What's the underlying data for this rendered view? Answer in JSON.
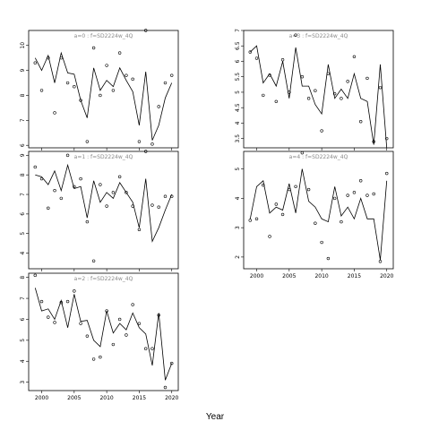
{
  "xlabel": "Year",
  "chart_data": [
    {
      "type": "line",
      "panel": "a=0",
      "title": "a=0  :  f=SD2224w_4Q",
      "xlim": [
        1998,
        2021
      ],
      "ylim": [
        5.9,
        10.6
      ],
      "yticks": [
        6,
        7,
        8,
        9,
        10
      ],
      "xticks": [
        2000,
        2005,
        2010,
        2015,
        2020
      ],
      "show_xticklabels": false,
      "series": [
        {
          "kind": "line",
          "x": [
            1999,
            2000,
            2001,
            2002,
            2003,
            2004,
            2005,
            2006,
            2007,
            2008,
            2009,
            2010,
            2011,
            2012,
            2013,
            2014,
            2015,
            2016,
            2017,
            2018,
            2019,
            2020
          ],
          "y": [
            9.5,
            9.0,
            9.6,
            8.5,
            9.7,
            8.9,
            8.85,
            7.8,
            7.1,
            9.1,
            8.2,
            8.6,
            8.35,
            9.1,
            8.6,
            8.15,
            6.8,
            8.95,
            6.2,
            6.8,
            7.9,
            8.5
          ]
        },
        {
          "kind": "points",
          "x": [
            1999,
            2000,
            2001,
            2002,
            2003,
            2004,
            2005,
            2006,
            2007,
            2008,
            2009,
            2010,
            2011,
            2012,
            2013,
            2014,
            2015,
            2016,
            2017,
            2018,
            2019,
            2020
          ],
          "y": [
            9.3,
            8.2,
            9.5,
            7.3,
            9.5,
            8.5,
            8.35,
            7.8,
            6.15,
            9.9,
            8.0,
            9.2,
            8.2,
            9.7,
            8.8,
            8.65,
            6.15,
            10.6,
            6.05,
            7.55,
            8.5,
            8.8
          ]
        }
      ]
    },
    {
      "type": "line",
      "panel": "a=1",
      "title": "a=1  :  f=SD2224w_4Q",
      "xlim": [
        1998,
        2021
      ],
      "ylim": [
        3.2,
        9.2
      ],
      "yticks": [
        4,
        5,
        6,
        7,
        8,
        9
      ],
      "xticks": [
        2000,
        2005,
        2010,
        2015,
        2020
      ],
      "show_xticklabels": false,
      "series": [
        {
          "kind": "line",
          "x": [
            1999,
            2000,
            2001,
            2002,
            2003,
            2004,
            2005,
            2006,
            2007,
            2008,
            2009,
            2010,
            2011,
            2012,
            2013,
            2014,
            2015,
            2016,
            2017,
            2018,
            2019,
            2020
          ],
          "y": [
            8.0,
            7.9,
            7.5,
            8.2,
            7.2,
            8.5,
            7.3,
            7.4,
            5.8,
            7.7,
            6.6,
            7.1,
            6.8,
            7.6,
            7.1,
            6.6,
            5.3,
            7.8,
            4.6,
            5.3,
            6.2,
            7.0
          ]
        },
        {
          "kind": "points",
          "x": [
            1999,
            2000,
            2001,
            2002,
            2003,
            2004,
            2005,
            2006,
            2007,
            2008,
            2009,
            2010,
            2011,
            2012,
            2013,
            2014,
            2015,
            2016,
            2017,
            2018,
            2019,
            2020
          ],
          "y": [
            8.4,
            7.8,
            6.3,
            7.2,
            6.8,
            9.0,
            7.4,
            7.8,
            5.6,
            3.6,
            7.5,
            6.4,
            7.1,
            7.9,
            7.1,
            6.4,
            5.2,
            9.2,
            6.45,
            6.35,
            6.9,
            6.9
          ]
        }
      ]
    },
    {
      "type": "line",
      "panel": "a=2",
      "title": "a=2  :  f=SD2224w_4Q",
      "xlim": [
        1998,
        2021
      ],
      "ylim": [
        2.6,
        8.2
      ],
      "yticks": [
        3,
        4,
        5,
        6,
        7,
        8
      ],
      "xticks": [
        2000,
        2005,
        2010,
        2015,
        2020
      ],
      "show_xticklabels": true,
      "series": [
        {
          "kind": "line",
          "x": [
            1999,
            2000,
            2001,
            2002,
            2003,
            2004,
            2005,
            2006,
            2007,
            2008,
            2009,
            2010,
            2011,
            2012,
            2013,
            2014,
            2015,
            2016,
            2017,
            2018,
            2019,
            2020
          ],
          "y": [
            7.5,
            6.4,
            6.5,
            6.0,
            6.9,
            5.6,
            7.2,
            5.9,
            5.95,
            5.0,
            4.7,
            6.4,
            5.35,
            5.8,
            5.5,
            6.3,
            5.6,
            5.3,
            3.8,
            6.3,
            3.1,
            3.9
          ]
        },
        {
          "kind": "points",
          "x": [
            1999,
            2000,
            2001,
            2002,
            2003,
            2004,
            2005,
            2006,
            2007,
            2008,
            2009,
            2010,
            2011,
            2012,
            2013,
            2014,
            2015,
            2016,
            2017,
            2018,
            2019,
            2020
          ],
          "y": [
            8.1,
            6.85,
            6.1,
            5.85,
            6.8,
            6.85,
            7.35,
            5.8,
            5.2,
            4.1,
            4.2,
            6.4,
            4.8,
            6.0,
            5.25,
            6.7,
            5.8,
            4.6,
            4.6,
            6.2,
            2.75,
            3.9
          ]
        }
      ]
    },
    {
      "type": "line",
      "panel": "a=3",
      "title": "a=3  :  f=SD2224w_4Q",
      "xlim": [
        1998,
        2021
      ],
      "ylim": [
        3.2,
        7.0
      ],
      "yticks": [
        3.5,
        4.0,
        4.5,
        5.0,
        5.5,
        6.0,
        6.5,
        7.0
      ],
      "xticks": [
        2000,
        2005,
        2010,
        2015,
        2020
      ],
      "show_xticklabels": false,
      "series": [
        {
          "kind": "line",
          "x": [
            1999,
            2000,
            2001,
            2002,
            2003,
            2004,
            2005,
            2006,
            2007,
            2008,
            2009,
            2010,
            2011,
            2012,
            2013,
            2014,
            2015,
            2016,
            2017,
            2018,
            2019,
            2020
          ],
          "y": [
            6.3,
            6.5,
            5.3,
            5.6,
            5.2,
            6.0,
            4.8,
            6.45,
            5.2,
            5.2,
            4.6,
            4.3,
            5.9,
            4.8,
            5.1,
            4.8,
            5.6,
            4.8,
            4.7,
            3.3,
            5.9,
            3.2
          ]
        },
        {
          "kind": "points",
          "x": [
            1999,
            2000,
            2001,
            2002,
            2003,
            2004,
            2005,
            2006,
            2007,
            2008,
            2009,
            2010,
            2011,
            2012,
            2013,
            2014,
            2015,
            2016,
            2017,
            2018,
            2019,
            2020
          ],
          "y": [
            6.3,
            6.1,
            4.9,
            5.55,
            4.7,
            6.05,
            5.0,
            6.85,
            5.5,
            4.8,
            5.05,
            3.75,
            5.6,
            4.95,
            4.8,
            5.35,
            6.15,
            4.05,
            5.45,
            3.4,
            5.15,
            3.5
          ]
        }
      ]
    },
    {
      "type": "line",
      "panel": "a=4",
      "title": "a=4  :  f=SD2224w_4Q",
      "xlim": [
        1998,
        2021
      ],
      "ylim": [
        1.6,
        5.6
      ],
      "yticks": [
        2,
        3,
        4,
        5
      ],
      "xticks": [
        2000,
        2005,
        2010,
        2015,
        2020
      ],
      "show_xticklabels": true,
      "series": [
        {
          "kind": "line",
          "x": [
            1999,
            2000,
            2001,
            2002,
            2003,
            2004,
            2005,
            2006,
            2007,
            2008,
            2009,
            2010,
            2011,
            2012,
            2013,
            2014,
            2015,
            2016,
            2017,
            2018,
            2019,
            2020
          ],
          "y": [
            3.3,
            4.4,
            4.6,
            3.5,
            3.7,
            3.6,
            4.5,
            3.5,
            5.0,
            3.9,
            3.7,
            3.3,
            3.2,
            4.4,
            3.4,
            3.7,
            3.3,
            4.0,
            3.3,
            3.3,
            1.9,
            4.6
          ]
        },
        {
          "kind": "points",
          "x": [
            1999,
            2000,
            2001,
            2002,
            2003,
            2004,
            2005,
            2006,
            2007,
            2008,
            2009,
            2010,
            2011,
            2012,
            2013,
            2014,
            2015,
            2016,
            2017,
            2018,
            2019,
            2020
          ],
          "y": [
            3.25,
            3.3,
            4.45,
            2.7,
            3.8,
            3.45,
            4.3,
            4.4,
            5.55,
            4.3,
            3.15,
            2.5,
            1.95,
            4.0,
            3.2,
            4.1,
            4.2,
            4.6,
            4.1,
            4.15,
            1.85,
            4.85
          ]
        }
      ]
    }
  ]
}
